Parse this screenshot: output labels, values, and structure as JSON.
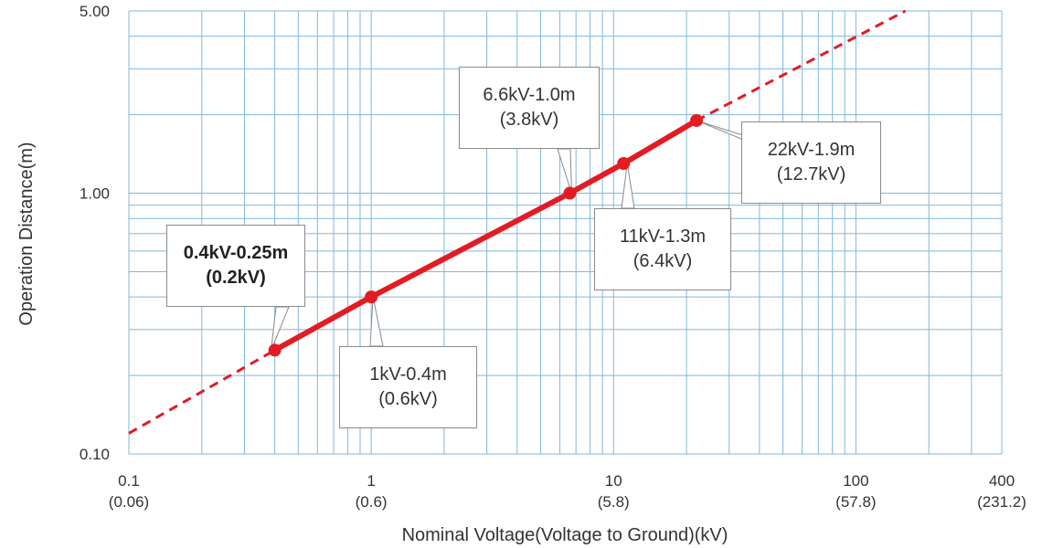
{
  "chart_data": {
    "type": "line",
    "title": "",
    "xlabel": "Nominal Voltage(Voltage to Ground)(kV)",
    "ylabel": "Operation Distance(m)",
    "x_scale": "log",
    "y_scale": "log",
    "xlim": [
      0.1,
      400
    ],
    "ylim": [
      0.1,
      5
    ],
    "grid": true,
    "x_ticks": [
      {
        "value": 0.1,
        "label": "0.1",
        "sublabel": "(0.06)"
      },
      {
        "value": 1,
        "label": "1",
        "sublabel": "(0.6)"
      },
      {
        "value": 10,
        "label": "10",
        "sublabel": "(5.8)"
      },
      {
        "value": 100,
        "label": "100",
        "sublabel": "(57.8)"
      },
      {
        "value": 400,
        "label": "400",
        "sublabel": "(231.2)"
      }
    ],
    "y_ticks": [
      {
        "value": 0.1,
        "label": "0.10"
      },
      {
        "value": 1,
        "label": "1.00"
      },
      {
        "value": 5,
        "label": "5.00"
      }
    ],
    "series": [
      {
        "style": "solid",
        "x": [
          0.4,
          1,
          6.6,
          11,
          22
        ],
        "y": [
          0.25,
          0.4,
          1.0,
          1.3,
          1.9
        ],
        "markers": true
      },
      {
        "style": "dashed",
        "x": [
          0.1,
          0.4
        ],
        "y": [
          0.12,
          0.25
        ]
      },
      {
        "style": "dashed",
        "x": [
          22,
          160
        ],
        "y": [
          1.9,
          5.0
        ]
      }
    ],
    "annotations": [
      {
        "x": 0.4,
        "y": 0.25,
        "line1": "0.4kV-0.25m",
        "line2": "(0.2kV)",
        "bold": true
      },
      {
        "x": 1,
        "y": 0.4,
        "line1": "1kV-0.4m",
        "line2": "(0.6kV)",
        "bold": false
      },
      {
        "x": 6.6,
        "y": 1.0,
        "line1": "6.6kV-1.0m",
        "line2": "(3.8kV)",
        "bold": false
      },
      {
        "x": 11,
        "y": 1.3,
        "line1": "11kV-1.3m",
        "line2": "(6.4kV)",
        "bold": false
      },
      {
        "x": 22,
        "y": 1.9,
        "line1": "22kV-1.9m",
        "line2": "(12.7kV)",
        "bold": false
      }
    ],
    "colors": {
      "line": "#e31b23",
      "grid": "#7fb8dd",
      "callout_border": "#8a8a8a",
      "text": "#333333"
    }
  }
}
